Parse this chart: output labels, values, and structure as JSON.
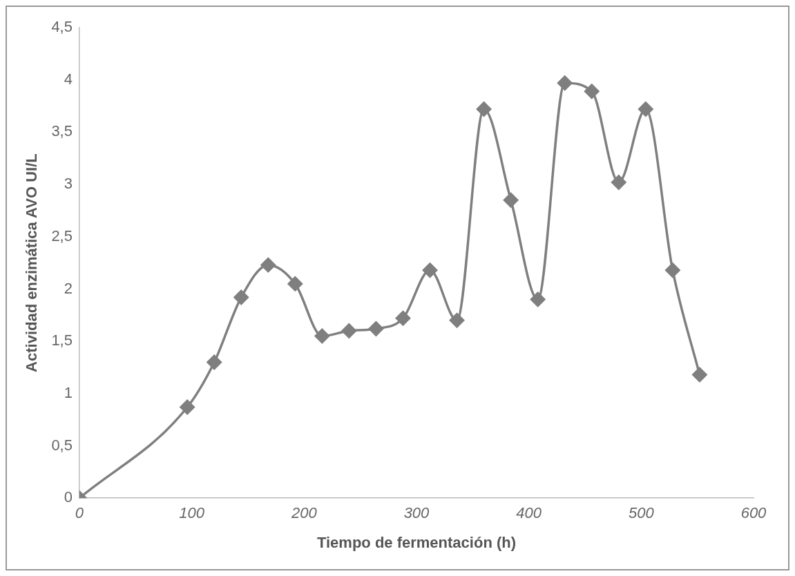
{
  "chart_data": {
    "type": "line",
    "xlabel": "Tiempo de fermentación (h)",
    "ylabel": "Actividad enzimática AVO UI/L",
    "x": [
      0,
      96,
      120,
      144,
      168,
      192,
      216,
      240,
      264,
      288,
      312,
      336,
      360,
      384,
      408,
      432,
      456,
      480,
      504,
      528,
      552
    ],
    "series": [
      {
        "color": "#7f7f7f",
        "values": [
          0,
          0.87,
          1.3,
          1.92,
          2.23,
          2.05,
          1.55,
          1.6,
          1.62,
          1.72,
          2.18,
          1.7,
          3.72,
          2.85,
          1.9,
          3.97,
          3.89,
          3.02,
          3.72,
          2.18,
          1.18
        ]
      }
    ],
    "xlim": [
      0,
      600
    ],
    "xticks": [
      0,
      100,
      200,
      300,
      400,
      500,
      600
    ],
    "ylim": [
      0,
      4.5
    ],
    "yticks": [
      0,
      {
        "value": 0.5,
        "label": "0,5"
      },
      1,
      {
        "value": 1.5,
        "label": "1,5"
      },
      2,
      {
        "value": 2.5,
        "label": "2,5"
      },
      3,
      {
        "value": 3.5,
        "label": "3,5"
      },
      4,
      {
        "value": 4.5,
        "label": "4,5"
      }
    ],
    "grid": false,
    "legend": false,
    "marker": "diamond",
    "line_style": "solid"
  }
}
